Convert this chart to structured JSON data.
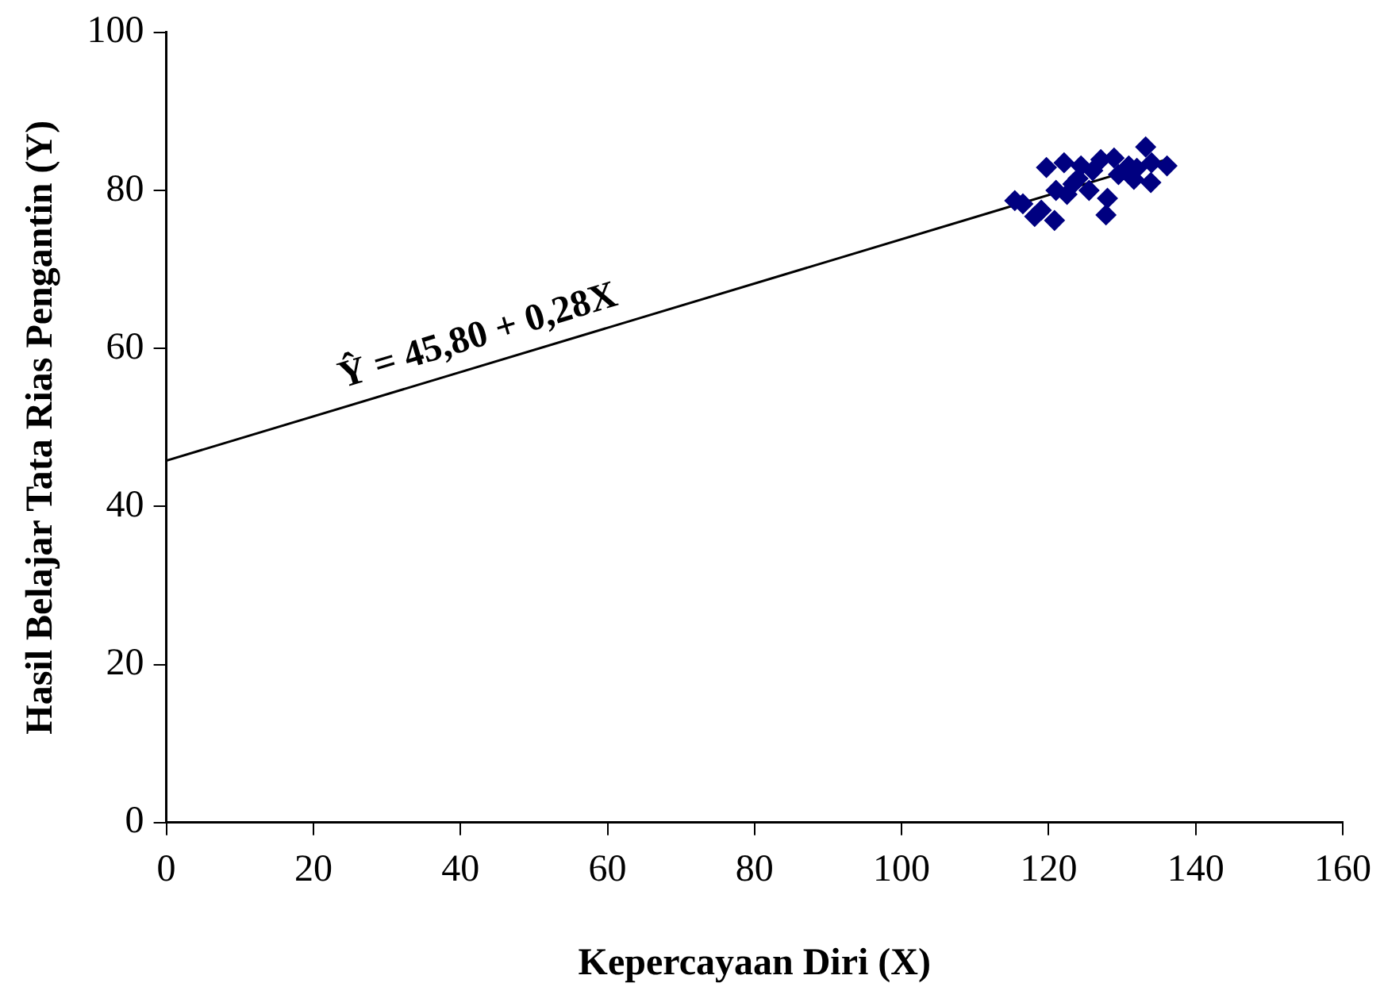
{
  "chart_data": {
    "type": "scatter",
    "xlabel": "Kepercayaan Diri (X)",
    "ylabel": "Hasil Belajar Tata Rias Pengantin (Y)",
    "xlim": [
      0,
      160
    ],
    "xticks": [
      0,
      20,
      40,
      60,
      80,
      100,
      120,
      140,
      160
    ],
    "ylim": [
      0,
      100
    ],
    "yticks": [
      0,
      20,
      40,
      60,
      80,
      100
    ],
    "grid": false,
    "marker": "diamond",
    "series": [
      {
        "type": "scatter",
        "color": "#000080",
        "x": [
          115.4,
          116.5,
          118.1,
          119,
          120.8,
          119.7,
          121,
          122.1,
          122.5,
          123.3,
          124.4,
          124,
          125.5,
          126,
          127.1,
          127.8,
          128,
          128.9,
          129.5,
          130.9,
          131.6,
          132,
          133.2,
          133.9,
          134,
          136.1
        ],
        "values": [
          78.7,
          78.3,
          76.7,
          77.5,
          76.2,
          82.9,
          80,
          83.5,
          79.5,
          80.8,
          83.1,
          81.5,
          80,
          82.5,
          83.9,
          76.9,
          79,
          84.1,
          82,
          83.1,
          81.4,
          82.8,
          85.5,
          81,
          83.5,
          83.1
        ]
      },
      {
        "type": "line",
        "color": "#000000",
        "marker": "none",
        "x": [
          0,
          136
        ],
        "values": [
          45.8,
          83.9
        ]
      }
    ],
    "annotations": [
      "Ŷ = 45,80 + 0,28X"
    ]
  }
}
